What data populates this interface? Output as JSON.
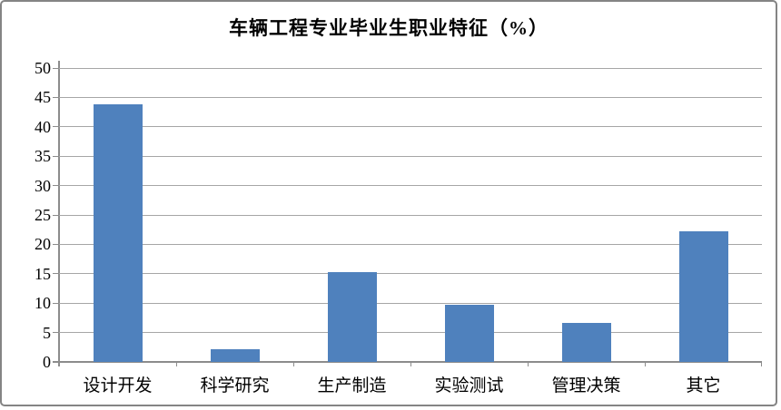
{
  "chart_data": {
    "type": "bar",
    "title": "车辆工程专业毕业生职业特征（%）",
    "categories": [
      "设计开发",
      "科学研究",
      "生产制造",
      "实验测试",
      "管理决策",
      "其它"
    ],
    "values": [
      43.9,
      2.2,
      15.3,
      9.8,
      6.6,
      22.2
    ],
    "xlabel": "",
    "ylabel": "",
    "ylim": [
      0,
      50
    ],
    "yticks": [
      0,
      5,
      10,
      15,
      20,
      25,
      30,
      35,
      40,
      45,
      50
    ],
    "grid": true,
    "legend_position": "none",
    "bar_color": "#4F81BD",
    "gridline_color": "#A6A6A6",
    "axis_color": "#8C8C8C",
    "title_color": "#000000",
    "frame_border_color": "#848484"
  }
}
